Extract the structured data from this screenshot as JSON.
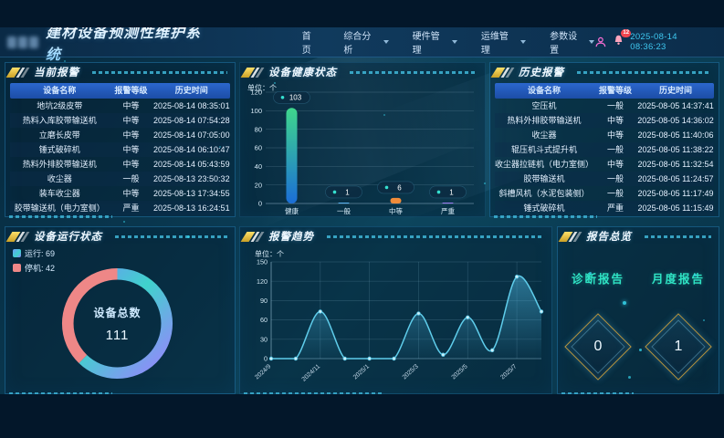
{
  "app": {
    "title": "建材设备预测性维护系统",
    "nav": [
      {
        "label": "首页"
      },
      {
        "label": "综合分析"
      },
      {
        "label": "硬件管理"
      },
      {
        "label": "运维管理"
      },
      {
        "label": "参数设置"
      }
    ],
    "notification_count": "12",
    "datetime": "2025-08-14 08:36:23"
  },
  "panels": {
    "current_alarms": {
      "title": "当前报警",
      "columns": [
        "设备名称",
        "报警等级",
        "历史时间"
      ],
      "rows": [
        [
          "地坑2级皮带",
          "中等",
          "2025-08-14 08:35:01"
        ],
        [
          "热料入库胶带输送机",
          "中等",
          "2025-08-14 07:54:28"
        ],
        [
          "立磨长皮带",
          "中等",
          "2025-08-14 07:05:00"
        ],
        [
          "锤式破碎机",
          "中等",
          "2025-08-14 06:10:47"
        ],
        [
          "热料外排胶带输送机",
          "中等",
          "2025-08-14 05:43:59"
        ],
        [
          "收尘器",
          "一般",
          "2025-08-13 23:50:32"
        ],
        [
          "装车收尘器",
          "中等",
          "2025-08-13 17:34:55"
        ],
        [
          "胶带输送机（电力室侧）",
          "严重",
          "2025-08-13 16:24:51"
        ]
      ]
    },
    "history_alarms": {
      "title": "历史报警",
      "columns": [
        "设备名称",
        "报警等级",
        "历史时间"
      ],
      "rows": [
        [
          "空压机",
          "一般",
          "2025-08-05 14:37:41"
        ],
        [
          "热料外排胶带输送机",
          "中等",
          "2025-08-05 14:36:02"
        ],
        [
          "收尘器",
          "中等",
          "2025-08-05 11:40:06"
        ],
        [
          "辊压机斗式提升机",
          "一般",
          "2025-08-05 11:38:22"
        ],
        [
          "收尘器拉链机（电力室侧）",
          "中等",
          "2025-08-05 11:32:54"
        ],
        [
          "胶带输送机",
          "一般",
          "2025-08-05 11:24:57"
        ],
        [
          "斜槽风机（水泥包装侧）",
          "一般",
          "2025-08-05 11:17:49"
        ],
        [
          "锤式破碎机",
          "严重",
          "2025-08-05 11:15:49"
        ]
      ]
    },
    "health": {
      "title": "设备健康状态",
      "unit": "单位：个"
    },
    "running": {
      "title": "设备运行状态",
      "legend": [
        {
          "text": "运行: 69",
          "label": "运行",
          "value": 69
        },
        {
          "text": "停机: 42",
          "label": "停机",
          "value": 42
        }
      ],
      "center_label": "设备总数",
      "total": "111"
    },
    "trend": {
      "title": "报警趋势",
      "unit": "单位：个"
    },
    "reports": {
      "title": "报告总览",
      "items": [
        {
          "label": "诊断报告",
          "value": "0"
        },
        {
          "label": "月度报告",
          "value": "1"
        }
      ]
    }
  },
  "chart_data": [
    {
      "type": "bar",
      "title": "设备健康状态",
      "categories": [
        "健康",
        "一般",
        "中等",
        "严重"
      ],
      "values": [
        103,
        1,
        6,
        1
      ],
      "ylabel": "单位：个",
      "ylim": [
        0,
        120
      ],
      "yticks": [
        0,
        20,
        40,
        60,
        80,
        100,
        120
      ],
      "bar_gradient": {
        "top": "#3fd68c",
        "bottom": "#1b6ed6"
      },
      "bar_colors": [
        "gradient",
        "#58b0f0",
        "#f08c3a",
        "#9a7af0"
      ]
    },
    {
      "type": "pie",
      "title": "设备运行状态",
      "labels": [
        "运行",
        "停机"
      ],
      "values": [
        69,
        42
      ],
      "total_label": "设备总数",
      "total": 111,
      "colors": {
        "run_start": "#7290fa",
        "run_mid": "#3fd2cc",
        "run_end": "#9a82ff",
        "stop": "#ee8787"
      }
    },
    {
      "type": "area",
      "title": "报警趋势",
      "x": [
        "2024/9",
        "2024/10",
        "2024/11",
        "2024/12",
        "2025/1",
        "2025/2",
        "2025/3",
        "2025/4",
        "2025/5",
        "2025/6",
        "2025/7",
        "2025/8"
      ],
      "values": [
        0,
        0,
        73,
        0,
        0,
        0,
        70,
        6,
        64,
        13,
        127,
        73
      ],
      "xticks": [
        "2024/9",
        "2024/11",
        "2025/1",
        "2025/3",
        "2025/5",
        "2025/7"
      ],
      "ylabel": "单位：个",
      "ylim": [
        0,
        150
      ],
      "yticks": [
        0,
        30,
        60,
        90,
        120,
        150
      ],
      "line_color": "#5fcdeb",
      "fill_color": "#46aad2"
    }
  ]
}
